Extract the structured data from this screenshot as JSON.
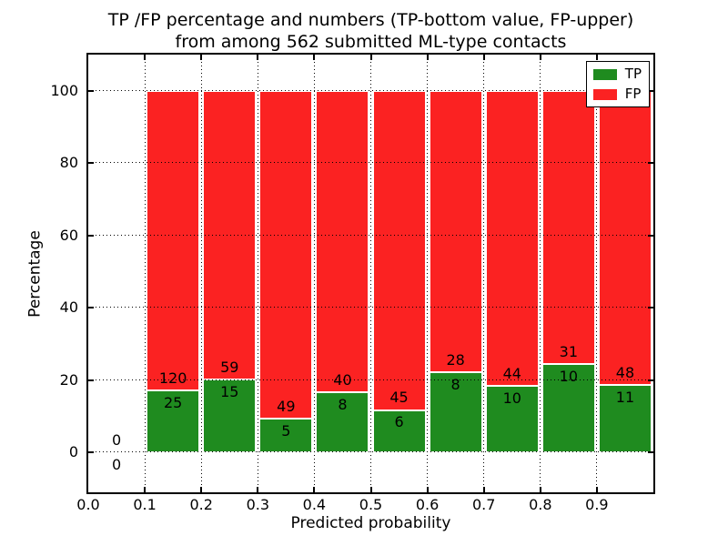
{
  "title": {
    "line1": "TP /FP percentage and numbers (TP-bottom value, FP-upper)",
    "line2": "from among 562 submitted ML-type contacts"
  },
  "axes": {
    "xlabel": "Predicted probability",
    "ylabel": "Percentage",
    "x_tick_labels": [
      "0.0",
      "0.1",
      "0.2",
      "0.3",
      "0.4",
      "0.5",
      "0.6",
      "0.7",
      "0.8",
      "0.9"
    ],
    "y_tick_labels": [
      "0",
      "20",
      "40",
      "60",
      "80",
      "100"
    ]
  },
  "legend": {
    "entries": [
      {
        "label": "TP",
        "color": "#1F8B1F"
      },
      {
        "label": "FP",
        "color": "#FB2222"
      }
    ],
    "position": "upper right"
  },
  "colors": {
    "tp_green": "#1F8B1F",
    "fp_red": "#FB2222",
    "grid": "#000000",
    "background": "#ffffff"
  },
  "chart_data": {
    "type": "bar",
    "stacked": true,
    "normalized_to": 100,
    "title": "TP /FP percentage and numbers (TP-bottom value, FP-upper) from among 562 submitted ML-type contacts",
    "xlabel": "Predicted probability",
    "ylabel": "Percentage",
    "total_contacts": 562,
    "bin_edges": [
      0.0,
      0.1,
      0.2,
      0.3,
      0.4,
      0.5,
      0.6,
      0.7,
      0.8,
      0.9,
      1.0
    ],
    "x_ticks": [
      0.0,
      0.1,
      0.2,
      0.3,
      0.4,
      0.5,
      0.6,
      0.7,
      0.8,
      0.9
    ],
    "y_ticks": [
      0,
      20,
      40,
      60,
      80,
      100
    ],
    "xlim": [
      0.0,
      1.0
    ],
    "ylim": [
      -11,
      110
    ],
    "grid": true,
    "grid_linestyle": "dotted",
    "legend_position": "upper right",
    "series": [
      {
        "name": "TP",
        "color": "#1F8B1F",
        "counts": [
          0,
          25,
          15,
          5,
          8,
          6,
          8,
          10,
          10,
          11
        ]
      },
      {
        "name": "FP",
        "color": "#FB2222",
        "counts": [
          0,
          120,
          59,
          49,
          40,
          45,
          28,
          44,
          31,
          48
        ]
      }
    ],
    "bar_count_labels_shown": true
  }
}
